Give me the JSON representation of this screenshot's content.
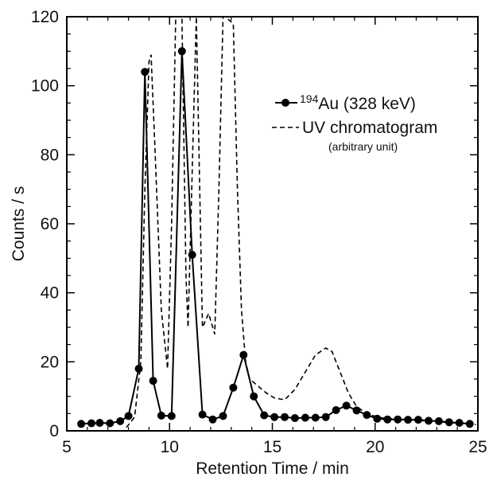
{
  "chart_data": {
    "type": "line",
    "xlabel": "Retention Time / min",
    "ylabel": "Counts / s",
    "xlim": [
      5,
      25
    ],
    "ylim": [
      0,
      120
    ],
    "x_ticks": [
      5,
      10,
      15,
      20,
      25
    ],
    "y_ticks": [
      0,
      20,
      40,
      60,
      80,
      100,
      120
    ],
    "grid": false,
    "legend_placement": "top-right",
    "series": [
      {
        "name": "194Au (328 keV)",
        "name_parts": {
          "superscript": "194",
          "main": "Au (328 keV)"
        },
        "style": "solid line with filled circle markers",
        "color": "#000000",
        "x": [
          5.7,
          6.2,
          6.6,
          7.1,
          7.6,
          8.0,
          8.5,
          8.8,
          9.2,
          9.6,
          10.1,
          10.6,
          11.1,
          11.6,
          12.1,
          12.6,
          13.1,
          13.6,
          14.1,
          14.6,
          15.1,
          15.6,
          16.1,
          16.6,
          17.1,
          17.6,
          18.1,
          18.6,
          19.1,
          19.6,
          20.1,
          20.6,
          21.1,
          21.6,
          22.1,
          22.6,
          23.1,
          23.6,
          24.1,
          24.6
        ],
        "values": [
          2,
          2.2,
          2.3,
          2.2,
          2.8,
          4.3,
          18,
          104,
          14.5,
          4.4,
          4.3,
          110,
          51,
          4.7,
          3.3,
          4.3,
          12.5,
          22,
          10,
          4.5,
          4.0,
          4.0,
          3.7,
          3.8,
          3.8,
          4.0,
          6.0,
          7.3,
          5.9,
          4.6,
          3.5,
          3.3,
          3.3,
          3.2,
          3.2,
          2.9,
          2.8,
          2.5,
          2.3,
          2.0
        ]
      },
      {
        "name": "UV chromatogram",
        "note": "(arbitrary unit)",
        "style": "dashed line",
        "color": "#000000",
        "x": [
          7.9,
          8.3,
          8.6,
          8.8,
          9.0,
          9.1,
          9.3,
          9.6,
          9.9,
          10.1,
          10.3,
          10.6,
          10.8,
          10.9,
          11.1,
          11.3,
          11.6,
          11.9,
          12.2,
          12.4,
          12.6,
          12.7,
          13.1,
          13.3,
          13.5,
          13.7,
          13.9,
          14.3,
          14.7,
          15.1,
          15.6,
          16.1,
          16.6,
          17.1,
          17.6,
          17.9,
          18.3,
          18.7,
          19.1,
          19.6,
          20.1,
          20.6,
          21.1,
          21.6,
          22.1,
          22.6,
          23.1,
          23.6,
          24.1,
          24.6,
          24.9
        ],
        "values": [
          1,
          4,
          20,
          70,
          107,
          109,
          80,
          35,
          18,
          60,
          120,
          120,
          45,
          30,
          75,
          120,
          30,
          34,
          28,
          70,
          120,
          120,
          118,
          70,
          35,
          20,
          15,
          13,
          11,
          9.5,
          9,
          12,
          17,
          22,
          24,
          23,
          17,
          11,
          7,
          5,
          4,
          3.5,
          3.5,
          3.3,
          3,
          2.8,
          2.6,
          2.4,
          2.2,
          2,
          1.8
        ]
      }
    ]
  }
}
